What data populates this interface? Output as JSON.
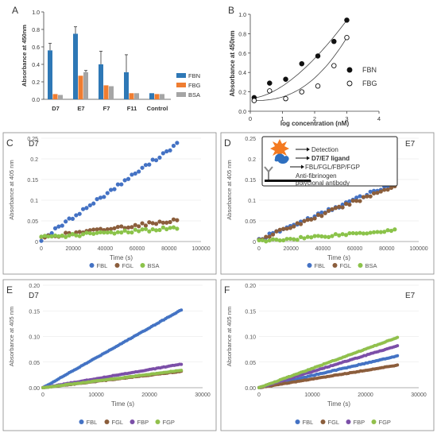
{
  "colors": {
    "FBN": "#2e78b6",
    "FBG_bar": "#ef7d31",
    "BSA_bar": "#a5a5a5",
    "FBL": "#4472c4",
    "FGL": "#8b5e3c",
    "BSA": "#8bc34a",
    "FBP": "#7b4fa8",
    "FGP": "#92c04c",
    "red": "#e0403a",
    "teal": "#5fcfd0",
    "pink": "#f0a0c8"
  },
  "panel_letters": [
    "A",
    "B",
    "C",
    "D",
    "E",
    "F"
  ],
  "chart_data": [
    {
      "panel": "A",
      "type": "bar",
      "categories": [
        "D7",
        "E7",
        "F7",
        "F11",
        "Control"
      ],
      "ylabel": "Absorbance at 450nm",
      "ylim": [
        0,
        1.0
      ],
      "yticks": [
        "0.0",
        "0.2",
        "0.4",
        "0.6",
        "0.8",
        "1.0"
      ],
      "series": [
        {
          "name": "FBN",
          "values": [
            0.56,
            0.75,
            0.4,
            0.31,
            0.07
          ],
          "err": [
            0.08,
            0.08,
            0.15,
            0.2,
            0.0
          ]
        },
        {
          "name": "FBG",
          "values": [
            0.06,
            0.27,
            0.16,
            0.07,
            0.06
          ],
          "err": [
            0,
            0,
            0,
            0,
            0
          ]
        },
        {
          "name": "BSA",
          "values": [
            0.05,
            0.31,
            0.15,
            0.07,
            0.06
          ],
          "err": [
            0,
            0.02,
            0,
            0,
            0
          ]
        }
      ]
    },
    {
      "panel": "B",
      "type": "scatter",
      "xlabel": "log concentration (nM)",
      "ylabel": "Absorbance at 450nm",
      "xlim": [
        0,
        4
      ],
      "ylim": [
        0,
        1.0
      ],
      "xticks": [
        "0",
        "1",
        "2",
        "3",
        "4"
      ],
      "yticks": [
        "0.0",
        "0.2",
        "0.4",
        "0.6",
        "0.8",
        "1.0"
      ],
      "series": [
        {
          "name": "FBN",
          "x": [
            0.12,
            0.6,
            1.1,
            1.6,
            2.1,
            2.6,
            3.0
          ],
          "y": [
            0.14,
            0.29,
            0.33,
            0.49,
            0.57,
            0.72,
            0.94
          ]
        },
        {
          "name": "FBG",
          "x": [
            0.12,
            0.6,
            1.1,
            1.6,
            2.1,
            2.6,
            3.0
          ],
          "y": [
            0.11,
            0.21,
            0.13,
            0.2,
            0.26,
            0.47,
            0.76
          ]
        }
      ]
    },
    {
      "panel": "C",
      "type": "scatter",
      "title": "D7",
      "xlabel": "Time (s)",
      "ylabel": "Absorbance at 405 nm",
      "xlim": [
        0,
        100000
      ],
      "ylim": [
        0,
        0.25
      ],
      "xticks": [
        "0",
        "20000",
        "40000",
        "60000",
        "80000",
        "100000"
      ],
      "yticks": [
        "0",
        "0.05",
        "0.1",
        "0.15",
        "0.2",
        "0.25"
      ],
      "series": [
        {
          "name": "FBL",
          "start": 0.005,
          "end": 0.236
        },
        {
          "name": "FGL",
          "start": 0.01,
          "end": 0.052
        },
        {
          "name": "BSA",
          "start": 0.01,
          "end": 0.033
        }
      ]
    },
    {
      "panel": "D",
      "type": "scatter",
      "title": "E7",
      "xlabel": "Time (s)",
      "ylabel": "Absorbance at 405 nm",
      "xlim": [
        0,
        100000
      ],
      "ylim": [
        0,
        0.25
      ],
      "xticks": [
        "0",
        "20000",
        "40000",
        "60000",
        "80000",
        "100000"
      ],
      "yticks": [
        "0",
        "0.05",
        "0.1",
        "0.15",
        "0.2",
        "0.25"
      ],
      "series": [
        {
          "name": "FBL",
          "start": 0.005,
          "end": 0.142
        },
        {
          "name": "FGL",
          "start": 0.005,
          "end": 0.135
        },
        {
          "name": "BSA",
          "start": 0.0,
          "end": 0.028
        }
      ],
      "inset": [
        "Detection",
        "D7/E7 ligand",
        "FBL/FGL/FBP/FGP",
        "Anti-fibrinogen",
        "polyclonal antibody"
      ]
    },
    {
      "panel": "E",
      "type": "scatter",
      "title": "D7",
      "xlabel": "Time (s)",
      "ylabel": "Absorbance at 405 nm",
      "xlim": [
        0,
        30000
      ],
      "ylim": [
        0,
        0.2
      ],
      "xticks": [
        "0",
        "10000",
        "20000",
        "30000"
      ],
      "yticks": [
        "0.00",
        "0.05",
        "0.10",
        "0.15",
        "0.20"
      ],
      "series": [
        {
          "name": "FBL",
          "start": 0.0,
          "end": 0.152
        },
        {
          "name": "FGL",
          "start": 0.0,
          "end": 0.032
        },
        {
          "name": "FBP",
          "start": 0.0,
          "end": 0.046
        },
        {
          "name": "FGP",
          "start": 0.0,
          "end": 0.034
        }
      ]
    },
    {
      "panel": "F",
      "type": "scatter",
      "title": "E7",
      "xlabel": "Time (s)",
      "ylabel": "Absorbance at 405 nm",
      "xlim": [
        0,
        30000
      ],
      "ylim": [
        0,
        0.2
      ],
      "xticks": [
        "0",
        "10000",
        "20000",
        "30000"
      ],
      "yticks": [
        "0.00",
        "0.05",
        "0.10",
        "0.15",
        "0.20"
      ],
      "series": [
        {
          "name": "FBL",
          "start": 0.0,
          "end": 0.062
        },
        {
          "name": "FGL",
          "start": 0.0,
          "end": 0.044
        },
        {
          "name": "FBP",
          "start": 0.0,
          "end": 0.082
        },
        {
          "name": "FGP",
          "start": 0.0,
          "end": 0.098
        }
      ]
    }
  ]
}
